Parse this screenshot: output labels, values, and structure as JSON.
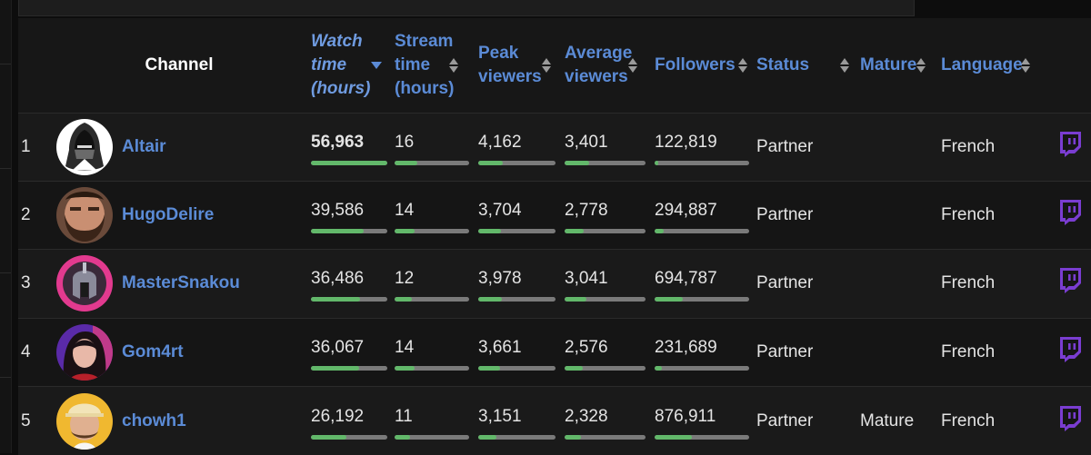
{
  "header": {
    "channel": "Channel",
    "watch_time": [
      "Watch",
      "time",
      "(hours)"
    ],
    "stream_time": [
      "Stream",
      "time",
      "(hours)"
    ],
    "peak_viewers": [
      "Peak",
      "viewers"
    ],
    "average_viewers": [
      "Average",
      "viewers"
    ],
    "followers": "Followers",
    "status": "Status",
    "mature": "Mature",
    "language": "Language"
  },
  "colors": {
    "accent": "#5b8bd6",
    "bar_fill": "#62b86a",
    "bar_track": "#7a7a7a",
    "twitch": "#7a3dd1"
  },
  "rows": [
    {
      "rank": "1",
      "name": "Altair",
      "avatar": "hooded-assassin",
      "watch_time": "56,963",
      "watch_time_fill": 1.0,
      "stream_time": "16",
      "stream_time_fill": 0.31,
      "peak_viewers": "4,162",
      "peak_viewers_fill": 0.32,
      "average_viewers": "3,401",
      "average_viewers_fill": 0.3,
      "followers": "122,819",
      "followers_fill": 0.04,
      "status": "Partner",
      "mature": "",
      "language": "French"
    },
    {
      "rank": "2",
      "name": "HugoDelire",
      "avatar": "bearded-man",
      "watch_time": "39,586",
      "watch_time_fill": 0.69,
      "stream_time": "14",
      "stream_time_fill": 0.27,
      "peak_viewers": "3,704",
      "peak_viewers_fill": 0.29,
      "average_viewers": "2,778",
      "average_viewers_fill": 0.24,
      "followers": "294,887",
      "followers_fill": 0.1,
      "status": "Partner",
      "mature": "",
      "language": "French"
    },
    {
      "rank": "3",
      "name": "MasterSnakou",
      "avatar": "spartan-helmet",
      "watch_time": "36,486",
      "watch_time_fill": 0.64,
      "stream_time": "12",
      "stream_time_fill": 0.23,
      "peak_viewers": "3,978",
      "peak_viewers_fill": 0.31,
      "average_viewers": "3,041",
      "average_viewers_fill": 0.27,
      "followers": "694,787",
      "followers_fill": 0.3,
      "status": "Partner",
      "mature": "",
      "language": "French"
    },
    {
      "rank": "4",
      "name": "Gom4rt",
      "avatar": "dark-haired-woman",
      "watch_time": "36,067",
      "watch_time_fill": 0.63,
      "stream_time": "14",
      "stream_time_fill": 0.27,
      "peak_viewers": "3,661",
      "peak_viewers_fill": 0.28,
      "average_viewers": "2,576",
      "average_viewers_fill": 0.22,
      "followers": "231,689",
      "followers_fill": 0.08,
      "status": "Partner",
      "mature": "",
      "language": "French"
    },
    {
      "rank": "5",
      "name": "chowh1",
      "avatar": "man-with-cap",
      "watch_time": "26,192",
      "watch_time_fill": 0.46,
      "stream_time": "11",
      "stream_time_fill": 0.21,
      "peak_viewers": "3,151",
      "peak_viewers_fill": 0.24,
      "average_viewers": "2,328",
      "average_viewers_fill": 0.2,
      "followers": "876,911",
      "followers_fill": 0.39,
      "status": "Partner",
      "mature": "Mature",
      "language": "French"
    }
  ]
}
